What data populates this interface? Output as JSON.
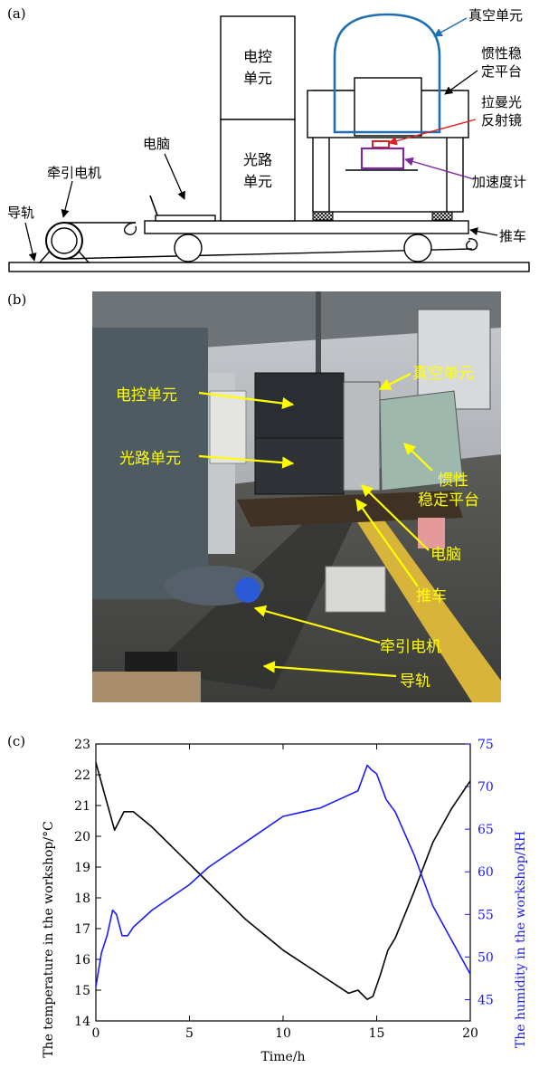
{
  "panels": {
    "a": "(a)",
    "b": "(b)",
    "c": "(c)"
  },
  "schematic": {
    "vacuum_unit": "真空单元",
    "inertial_platform_line1": "惯性稳",
    "inertial_platform_line2": "定平台",
    "raman_mirror_line1": "拉曼光",
    "raman_mirror_line2": "反射镜",
    "accelerometer": "加速度计",
    "electronic_control_line1": "电控",
    "electronic_control_line2": "单元",
    "optical_line1": "光路",
    "optical_line2": "单元",
    "computer": "电脑",
    "traction_motor": "牵引电机",
    "guide_rail": "导轨",
    "cart": "推车"
  },
  "photo": {
    "electronic_control": "电控单元",
    "optical": "光路单元",
    "vacuum_unit": "真空单元",
    "inertial_platform_line1": "惯性",
    "inertial_platform_line2": "稳定平台",
    "computer": "电脑",
    "cart": "推车",
    "traction_motor": "牵引电机",
    "guide_rail": "导轨"
  },
  "colors": {
    "temperature_line": "#000000",
    "humidity_line": "#1a1aff",
    "vacuum_outline": "#1f6fb4",
    "raman_mirror": "#e02020",
    "accelerometer": "#7a2a9a",
    "photo_labels": "#ffff00"
  },
  "chart_data": {
    "type": "line",
    "xlabel": "Time/h",
    "ylabel": "The temperature in the workshop/°C",
    "y2label": "The humidity in the workshop/RH",
    "xlim": [
      0,
      20
    ],
    "ylim": [
      14,
      23
    ],
    "y2lim": [
      42.5,
      75
    ],
    "x_ticks": [
      0,
      5,
      10,
      15,
      20
    ],
    "y_ticks": [
      14,
      15,
      16,
      17,
      18,
      19,
      20,
      21,
      22,
      23
    ],
    "y2_ticks": [
      45,
      50,
      55,
      60,
      65,
      70,
      75
    ],
    "series": [
      {
        "axis": "left",
        "x": [
          0,
          0.5,
          1.0,
          1.5,
          2.0,
          3.0,
          4.0,
          5.0,
          6.0,
          7.0,
          8.0,
          9.0,
          10.0,
          11.0,
          12.0,
          13.0,
          13.5,
          14.0,
          14.5,
          14.8,
          15.2,
          15.6,
          16.0,
          17.0,
          18.0,
          19.0,
          20.0
        ],
        "values": [
          22.4,
          21.3,
          20.2,
          20.8,
          20.8,
          20.3,
          19.7,
          19.1,
          18.5,
          17.9,
          17.3,
          16.8,
          16.3,
          15.9,
          15.5,
          15.1,
          14.9,
          15.0,
          14.7,
          14.8,
          15.5,
          16.3,
          16.7,
          18.2,
          19.8,
          20.9,
          21.8
        ]
      },
      {
        "axis": "right",
        "x": [
          0,
          0.3,
          0.6,
          0.9,
          1.1,
          1.4,
          1.7,
          2.0,
          3.0,
          4.0,
          5.0,
          6.0,
          7.0,
          8.0,
          9.0,
          10.0,
          11.0,
          12.0,
          13.0,
          14.0,
          14.5,
          14.7,
          15.0,
          15.5,
          16.0,
          17.0,
          18.0,
          19.0,
          19.5,
          20.0
        ],
        "values": [
          46.5,
          50.5,
          52.5,
          55.5,
          55.0,
          52.5,
          52.5,
          53.5,
          55.5,
          57.0,
          58.5,
          60.5,
          62.0,
          63.5,
          65.0,
          66.5,
          67.0,
          67.5,
          68.5,
          69.5,
          72.5,
          72.0,
          71.5,
          68.5,
          67.0,
          62.0,
          56.0,
          52.0,
          50.0,
          48.0
        ]
      }
    ]
  }
}
